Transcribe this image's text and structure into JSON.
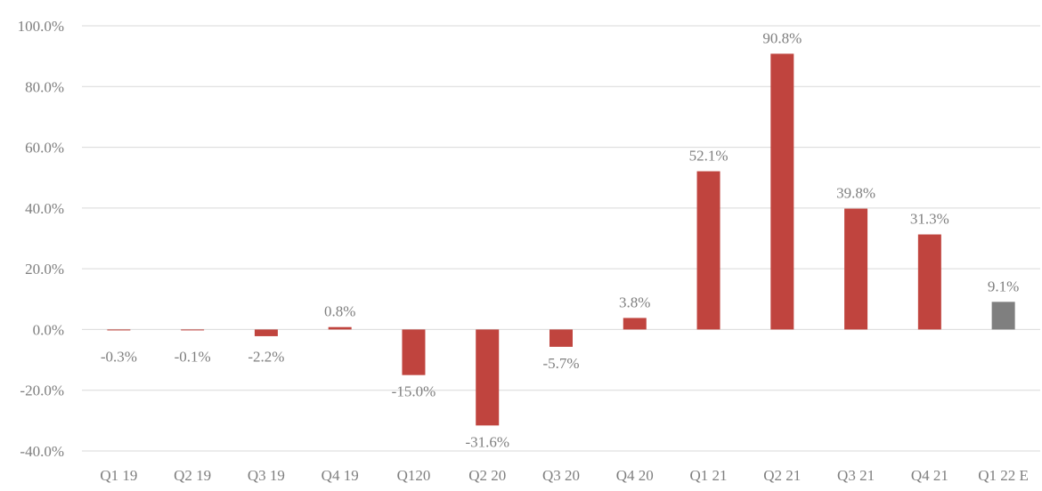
{
  "chart_data": {
    "type": "bar",
    "title": "",
    "xlabel": "",
    "ylabel": "",
    "categories": [
      "Q1 19",
      "Q2 19",
      "Q3 19",
      "Q4 19",
      "Q120",
      "Q2 20",
      "Q3 20",
      "Q4 20",
      "Q1 21",
      "Q2 21",
      "Q3 21",
      "Q4 21",
      "Q1 22 E"
    ],
    "values": [
      -0.3,
      -0.1,
      -2.2,
      0.8,
      -15.0,
      -31.6,
      -5.7,
      3.8,
      52.1,
      90.8,
      39.8,
      31.3,
      9.1
    ],
    "data_labels": [
      "-0.3%",
      "-0.1%",
      "-2.2%",
      "0.8%",
      "-15.0%",
      "-31.6%",
      "-5.7%",
      "3.8%",
      "52.1%",
      "90.8%",
      "39.8%",
      "31.3%",
      "9.1%"
    ],
    "ylim": [
      -40,
      100
    ],
    "yticks": [
      100,
      80,
      60,
      40,
      20,
      0,
      -20,
      -40
    ],
    "ytick_labels": [
      "100.0%",
      "80.0%",
      "60.0%",
      "40.0%",
      "20.0%",
      "0.0%",
      "-20.0%",
      "-40.0%"
    ],
    "grid": true,
    "legend": "none",
    "colors": {
      "actual": "#c0443e",
      "estimate": "#7f7f7f",
      "grid": "#d9d9d9",
      "text": "#7f7f7f"
    },
    "estimate_index": 12
  }
}
